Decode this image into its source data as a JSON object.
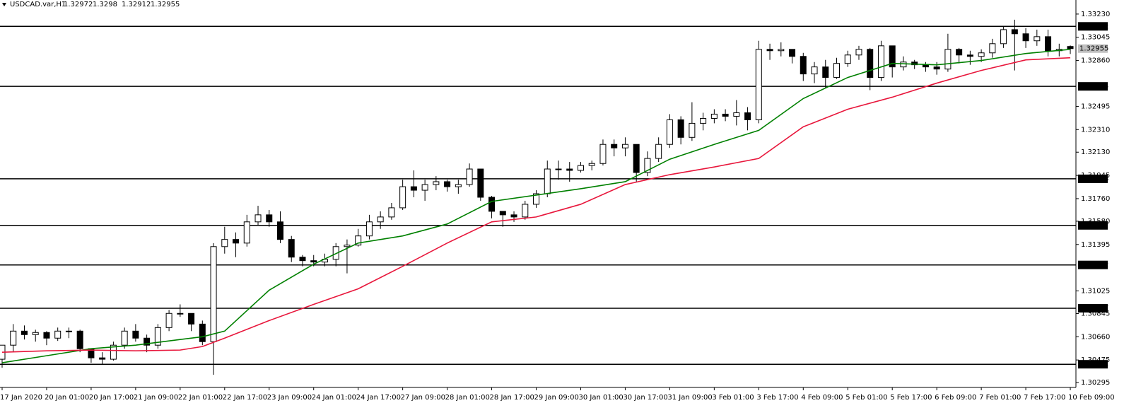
{
  "chart_data": {
    "type": "candlestick",
    "title": "USDCAD.var,H1",
    "categories": [
      "17 Jan 2020",
      null,
      null,
      null,
      "20 Jan 01:00",
      null,
      null,
      null,
      "20 Jan 17:00",
      null,
      null,
      null,
      "21 Jan 09:00",
      null,
      null,
      null,
      "22 Jan 01:00",
      null,
      null,
      null,
      "22 Jan 17:00",
      null,
      null,
      null,
      "23 Jan 09:00",
      null,
      null,
      null,
      "24 Jan 01:00",
      null,
      null,
      null,
      "24 Jan 17:00",
      null,
      null,
      null,
      "27 Jan 09:00",
      null,
      null,
      null,
      "28 Jan 01:00",
      null,
      null,
      null,
      "28 Jan 17:00",
      null,
      null,
      null,
      "29 Jan 09:00",
      null,
      null,
      null,
      "30 Jan 01:00",
      null,
      null,
      null,
      "30 Jan 17:00",
      null,
      null,
      null,
      "31 Jan 09:00",
      null,
      null,
      null,
      "3 Feb 01:00",
      null,
      null,
      null,
      "3 Feb 17:00",
      null,
      null,
      null,
      "4 Feb 09:00",
      null,
      null,
      null,
      "5 Feb 01:00",
      null,
      null,
      null,
      "5 Feb 17:00",
      null,
      null,
      null,
      "6 Feb 09:00",
      null,
      null,
      null,
      "7 Feb 01:00",
      null,
      null,
      null,
      "7 Feb 17:00",
      null,
      null,
      null,
      "10 Feb 09:00"
    ],
    "open": [
      1.30481,
      1.30593,
      1.30705,
      1.30677,
      1.30694,
      1.30649,
      1.30705,
      1.30705,
      1.30565,
      1.30492,
      1.30481,
      1.30593,
      1.30705,
      1.30649,
      1.30593,
      1.30733,
      1.30846,
      1.30846,
      1.30761,
      1.30621,
      1.31378,
      1.31435,
      1.31406,
      1.31575,
      1.31631,
      1.31575,
      1.31435,
      1.31294,
      1.31266,
      1.31255,
      1.31277,
      1.31378,
      1.3139,
      1.31463,
      1.31575,
      1.31614,
      1.31687,
      1.31855,
      1.31827,
      1.31872,
      1.31895,
      1.31855,
      1.31872,
      1.31996,
      1.31771,
      1.31659,
      1.31631,
      1.31614,
      1.31715,
      1.31799,
      1.31996,
      1.31996,
      1.31985,
      1.32024,
      1.3204,
      1.32192,
      1.32164,
      1.32192,
      1.31968,
      1.3208,
      1.32192,
      1.32388,
      1.32248,
      1.3236,
      1.32399,
      1.32433,
      1.32416,
      1.32444,
      1.32388,
      1.32949,
      1.32938,
      1.32949,
      1.32893,
      1.32753,
      1.32809,
      1.32725,
      1.32837,
      1.32904,
      1.32949,
      1.32725,
      1.32977,
      1.32809,
      1.32848,
      1.32826,
      1.32809,
      1.32792,
      1.32949,
      1.32904,
      1.32893,
      1.32921,
      1.32994,
      1.33106,
      1.33073,
      1.33017,
      1.3305,
      1.32938,
      1.32972
    ],
    "high": [
      1.30565,
      1.30761,
      1.3075,
      1.30716,
      1.30705,
      1.30733,
      1.30733,
      1.30716,
      1.30565,
      1.30537,
      1.30621,
      1.30733,
      1.30761,
      1.30677,
      1.30761,
      1.30874,
      1.30918,
      1.30846,
      1.30789,
      1.31406,
      1.31536,
      1.31491,
      1.31631,
      1.31703,
      1.3167,
      1.31659,
      1.31463,
      1.31311,
      1.31311,
      1.31322,
      1.31406,
      1.31435,
      1.31519,
      1.31631,
      1.31659,
      1.31726,
      1.31911,
      1.31985,
      1.31911,
      1.31939,
      1.31911,
      1.31911,
      1.3204,
      1.31996,
      1.31782,
      1.31659,
      1.31659,
      1.31743,
      1.31827,
      1.32063,
      1.32063,
      1.32052,
      1.32052,
      1.32063,
      1.32231,
      1.32231,
      1.32248,
      1.32192,
      1.32136,
      1.32248,
      1.32433,
      1.32416,
      1.32528,
      1.32444,
      1.32472,
      1.32472,
      1.32545,
      1.32489,
      1.33017,
      1.32994,
      1.33005,
      1.32949,
      1.32921,
      1.32848,
      1.32865,
      1.32882,
      1.32938,
      1.32977,
      1.3296,
      1.33017,
      1.32977,
      1.32893,
      1.32865,
      1.32848,
      1.32848,
      1.33073,
      1.3296,
      1.32938,
      1.32949,
      1.33033,
      1.33129,
      1.33185,
      1.33118,
      1.33106,
      1.33106,
      1.32994,
      1.3298
    ],
    "low": [
      1.30414,
      1.30537,
      1.30638,
      1.30621,
      1.30593,
      1.30627,
      1.30649,
      1.30537,
      1.30453,
      1.30436,
      1.3047,
      1.30565,
      1.30621,
      1.30537,
      1.30565,
      1.30705,
      1.30818,
      1.30705,
      1.30593,
      1.30357,
      1.31322,
      1.31294,
      1.31378,
      1.31547,
      1.31536,
      1.31406,
      1.31255,
      1.31221,
      1.31221,
      1.31221,
      1.31221,
      1.31165,
      1.31378,
      1.31435,
      1.31519,
      1.31592,
      1.3167,
      1.31771,
      1.31743,
      1.31827,
      1.31816,
      1.31799,
      1.31855,
      1.31743,
      1.31603,
      1.31536,
      1.31575,
      1.31592,
      1.31687,
      1.31771,
      1.31911,
      1.31895,
      1.31968,
      1.31985,
      1.32024,
      1.32097,
      1.32097,
      1.31895,
      1.31939,
      1.32052,
      1.32164,
      1.32192,
      1.3222,
      1.32304,
      1.3236,
      1.32377,
      1.32343,
      1.32304,
      1.3236,
      1.32865,
      1.32893,
      1.32837,
      1.32697,
      1.3268,
      1.32641,
      1.32714,
      1.32809,
      1.32865,
      1.32624,
      1.32697,
      1.32725,
      1.32781,
      1.32792,
      1.3277,
      1.32747,
      1.3277,
      1.32837,
      1.32826,
      1.32848,
      1.32882,
      1.3296,
      1.32781,
      1.3296,
      1.32977,
      1.32893,
      1.32893,
      1.32912
    ],
    "close": [
      1.30593,
      1.30705,
      1.30677,
      1.30694,
      1.30649,
      1.30705,
      1.30705,
      1.30565,
      1.30492,
      1.30481,
      1.30593,
      1.30705,
      1.30649,
      1.30593,
      1.30733,
      1.30846,
      1.30846,
      1.30761,
      1.30621,
      1.31378,
      1.31435,
      1.31406,
      1.31575,
      1.31631,
      1.31575,
      1.31435,
      1.31294,
      1.31266,
      1.31255,
      1.31277,
      1.31378,
      1.3139,
      1.31463,
      1.31575,
      1.31614,
      1.31687,
      1.31855,
      1.31827,
      1.31872,
      1.31895,
      1.31855,
      1.31872,
      1.31996,
      1.31771,
      1.31659,
      1.31631,
      1.31614,
      1.31715,
      1.31799,
      1.31996,
      1.31996,
      1.31985,
      1.32024,
      1.3204,
      1.32192,
      1.32164,
      1.32192,
      1.31968,
      1.3208,
      1.32192,
      1.32388,
      1.32248,
      1.3236,
      1.32399,
      1.32433,
      1.32416,
      1.32444,
      1.32388,
      1.32949,
      1.32938,
      1.32949,
      1.32893,
      1.32753,
      1.32809,
      1.32725,
      1.32837,
      1.32904,
      1.32949,
      1.32725,
      1.32977,
      1.32809,
      1.32848,
      1.32826,
      1.32809,
      1.32792,
      1.32949,
      1.32904,
      1.32893,
      1.32921,
      1.32994,
      1.33106,
      1.33073,
      1.33017,
      1.3305,
      1.32938,
      1.32949,
      1.32955
    ],
    "up_color": "#ffffff",
    "down_color": "#000000",
    "series": [
      {
        "type": "line",
        "color": "#008000",
        "x": [
          0,
          4,
          8,
          12,
          16,
          18,
          20,
          24,
          28,
          32,
          36,
          40,
          44,
          48,
          52,
          56,
          60,
          64,
          68,
          72,
          76,
          80,
          84,
          88,
          92,
          96
        ],
        "values": [
          1.30453,
          1.30509,
          1.30565,
          1.30593,
          1.30638,
          1.3066,
          1.30705,
          1.31031,
          1.31238,
          1.31406,
          1.31463,
          1.31558,
          1.31738,
          1.31788,
          1.31839,
          1.31895,
          1.32074,
          1.32192,
          1.32304,
          1.32557,
          1.32725,
          1.32837,
          1.32826,
          1.3286,
          1.32916,
          1.32949
        ]
      },
      {
        "type": "line",
        "color": "#e8173c",
        "x": [
          0,
          4,
          8,
          12,
          16,
          18,
          20,
          24,
          28,
          32,
          36,
          40,
          44,
          48,
          52,
          56,
          60,
          64,
          68,
          72,
          76,
          80,
          84,
          88,
          92,
          96
        ],
        "values": [
          1.30537,
          1.30548,
          1.30554,
          1.30548,
          1.30554,
          1.30582,
          1.30649,
          1.30789,
          1.30918,
          1.31042,
          1.31221,
          1.31406,
          1.31575,
          1.31614,
          1.31715,
          1.31872,
          1.31951,
          1.32012,
          1.3208,
          1.32332,
          1.32472,
          1.32568,
          1.3268,
          1.32781,
          1.32865,
          1.32882
        ]
      }
    ],
    "levels": [
      1.33132,
      1.32654,
      1.31918,
      1.31547,
      1.31232,
      1.30887,
      1.30441
    ],
    "ylim": [
      1.30245,
      1.33342
    ],
    "yticks": [
      {
        "value": 1.3323,
        "label": "1.33230"
      },
      1.33045,
      {
        "value": 1.3286,
        "label": "1.32860"
      },
      1.32495,
      {
        "value": 1.3231,
        "label": "1.32310"
      },
      {
        "value": 1.3213,
        "label": "1.32130"
      },
      1.31945,
      {
        "value": 1.3176,
        "label": "1.31760"
      },
      {
        "value": 1.3158,
        "label": "1.31580"
      },
      1.31395,
      {
        "value": 1.31025,
        "label": "1.31025"
      },
      1.30845,
      {
        "value": 1.3066,
        "label": "1.30660"
      },
      1.30475,
      1.30295
    ]
  }
}
